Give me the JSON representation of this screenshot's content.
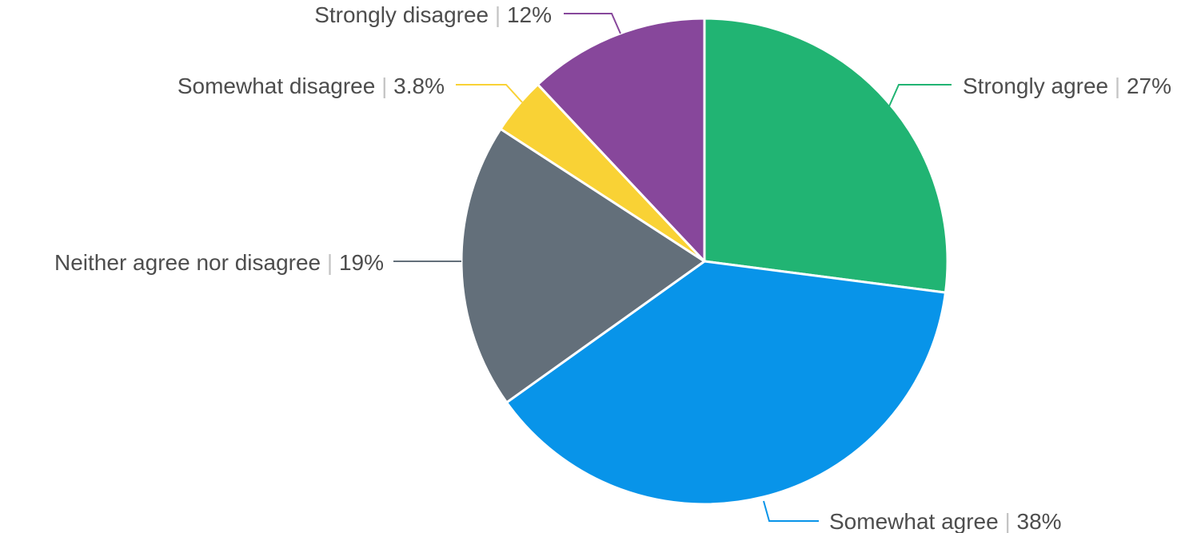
{
  "chart_data": {
    "type": "pie",
    "title": "",
    "unit": "%",
    "slices": [
      {
        "label": "Strongly agree",
        "value": 27,
        "value_label": "27%",
        "color": "#21b473"
      },
      {
        "label": "Somewhat agree",
        "value": 38,
        "value_label": "38%",
        "color": "#0894e9"
      },
      {
        "label": "Neither agree nor disagree",
        "value": 19,
        "value_label": "19%",
        "color": "#636f7a"
      },
      {
        "label": "Somewhat disagree",
        "value": 3.8,
        "value_label": "3.8%",
        "color": "#f9d235"
      },
      {
        "label": "Strongly disagree",
        "value": 12,
        "value_label": "12%",
        "color": "#87479b"
      }
    ],
    "label_separator": "|",
    "legend": "none",
    "labels": "outside-with-leader-lines"
  }
}
